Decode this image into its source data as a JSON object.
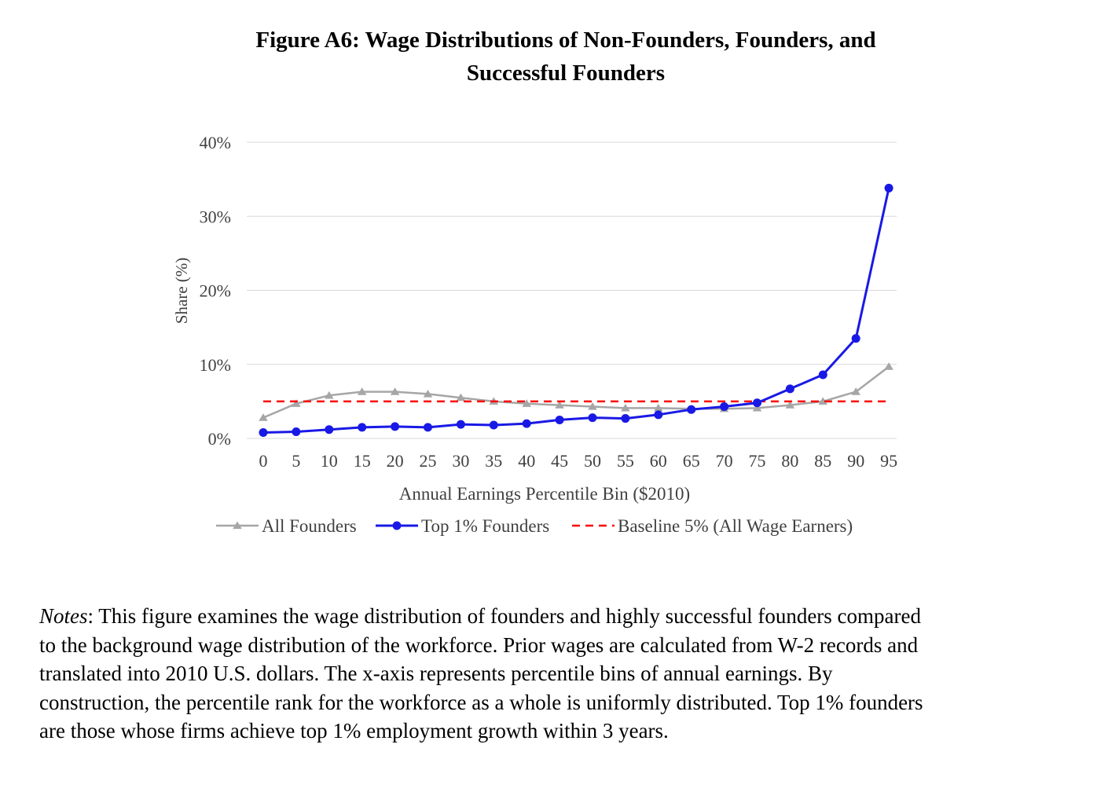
{
  "title": {
    "line1": "Figure A6: Wage Distributions of Non-Founders, Founders, and",
    "line2": "Successful Founders"
  },
  "chart_data": {
    "type": "line",
    "title": "Figure A6: Wage Distributions of Non-Founders, Founders, and Successful Founders",
    "xlabel": "Annual Earnings Percentile Bin ($2010)",
    "ylabel": "Share (%)",
    "x": [
      0,
      5,
      10,
      15,
      20,
      25,
      30,
      35,
      40,
      45,
      50,
      55,
      60,
      65,
      70,
      75,
      80,
      85,
      90,
      95
    ],
    "ylim": [
      0,
      40
    ],
    "yticks": [
      0,
      10,
      20,
      30,
      40
    ],
    "ytick_labels": [
      "0%",
      "10%",
      "20%",
      "30%",
      "40%"
    ],
    "grid": "horizontal",
    "legend_position": "bottom",
    "series": [
      {
        "name": "All Founders",
        "color": "#a6a6a6",
        "marker": "triangle",
        "values": [
          2.8,
          4.7,
          5.8,
          6.3,
          6.3,
          6.0,
          5.5,
          5.0,
          4.7,
          4.5,
          4.3,
          4.1,
          4.1,
          4.0,
          4.0,
          4.1,
          4.5,
          5.0,
          6.3,
          9.7
        ]
      },
      {
        "name": "Top 1% Founders",
        "color": "#1919e6",
        "marker": "circle",
        "values": [
          0.8,
          0.9,
          1.2,
          1.5,
          1.6,
          1.5,
          1.9,
          1.8,
          2.0,
          2.5,
          2.8,
          2.7,
          3.2,
          3.9,
          4.3,
          4.8,
          6.7,
          8.6,
          13.5,
          33.8
        ]
      },
      {
        "name": "Baseline 5% (All Wage Earners)",
        "color": "#ff0000",
        "marker": "none",
        "style": "dashed",
        "values": [
          5,
          5,
          5,
          5,
          5,
          5,
          5,
          5,
          5,
          5,
          5,
          5,
          5,
          5,
          5,
          5,
          5,
          5,
          5,
          5
        ]
      }
    ]
  },
  "notes": {
    "label": "Notes",
    "line1": ": This figure examines the wage distribution of founders and highly successful founders compared",
    "line2": "to the background wage distribution of the workforce.  Prior wages are calculated from W-2 records and",
    "line3": "translated into 2010 U.S. dollars.  The x-axis represents percentile bins of annual earnings.  By",
    "line4": "construction, the percentile rank for the workforce as a whole is uniformly distributed.  Top 1% founders",
    "line5": "are those whose firms achieve top 1% employment growth within 3 years."
  }
}
